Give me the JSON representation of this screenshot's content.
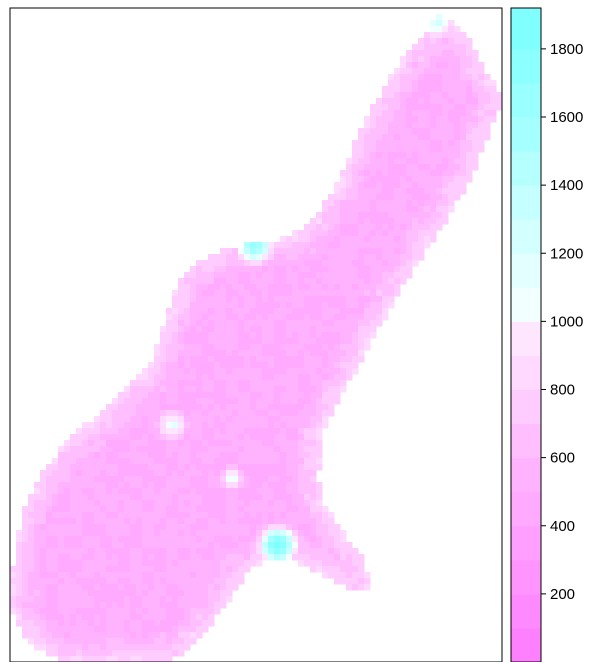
{
  "chart_data": {
    "type": "heatmap",
    "title": "",
    "xlabel": "",
    "ylabel": "",
    "legend": {
      "placement": "right",
      "range": [
        0,
        1920
      ],
      "ticks": [
        200,
        400,
        600,
        800,
        1000,
        1200,
        1400,
        1600,
        1800
      ],
      "tick_labels": [
        "200",
        "400",
        "600",
        "800",
        "1000",
        "1200",
        "1400",
        "1600",
        "1800"
      ],
      "bins": [
        {
          "from": 0,
          "to": 100,
          "color": "#ff80ff"
        },
        {
          "from": 100,
          "to": 200,
          "color": "#ff8aff"
        },
        {
          "from": 200,
          "to": 300,
          "color": "#ff94ff"
        },
        {
          "from": 300,
          "to": 400,
          "color": "#ff9fff"
        },
        {
          "from": 400,
          "to": 500,
          "color": "#ffa9ff"
        },
        {
          "from": 500,
          "to": 600,
          "color": "#ffb3ff"
        },
        {
          "from": 600,
          "to": 700,
          "color": "#ffbfff"
        },
        {
          "from": 700,
          "to": 800,
          "color": "#ffccff"
        },
        {
          "from": 800,
          "to": 900,
          "color": "#ffd9ff"
        },
        {
          "from": 900,
          "to": 1000,
          "color": "#ffe6ff"
        },
        {
          "from": 1000,
          "to": 1100,
          "color": "#f2ffff"
        },
        {
          "from": 1100,
          "to": 1200,
          "color": "#e3ffff"
        },
        {
          "from": 1200,
          "to": 1300,
          "color": "#d4ffff"
        },
        {
          "from": 1300,
          "to": 1400,
          "color": "#c6ffff"
        },
        {
          "from": 1400,
          "to": 1500,
          "color": "#b6ffff"
        },
        {
          "from": 1500,
          "to": 1600,
          "color": "#a6ffff"
        },
        {
          "from": 1600,
          "to": 1700,
          "color": "#99ffff"
        },
        {
          "from": 1700,
          "to": 1800,
          "color": "#8cffff"
        },
        {
          "from": 1800,
          "to": 1920,
          "color": "#80ffff"
        }
      ]
    },
    "field": {
      "description": "gridded raster over an irregular region",
      "typical_range": [
        300,
        600
      ],
      "high_spots": [
        {
          "label": "upper-left edge strip",
          "value": 1400
        },
        {
          "label": "northern tip",
          "value": 1000
        },
        {
          "label": "central spot",
          "value": 1000
        },
        {
          "label": "lower bay spot",
          "value": 1700
        },
        {
          "label": "left flank spot",
          "value": 900
        }
      ]
    },
    "grid": false,
    "colors": {
      "low": "#ff80ff",
      "mid": "#ffffff",
      "high": "#80ffff",
      "frame": "#000000"
    }
  }
}
